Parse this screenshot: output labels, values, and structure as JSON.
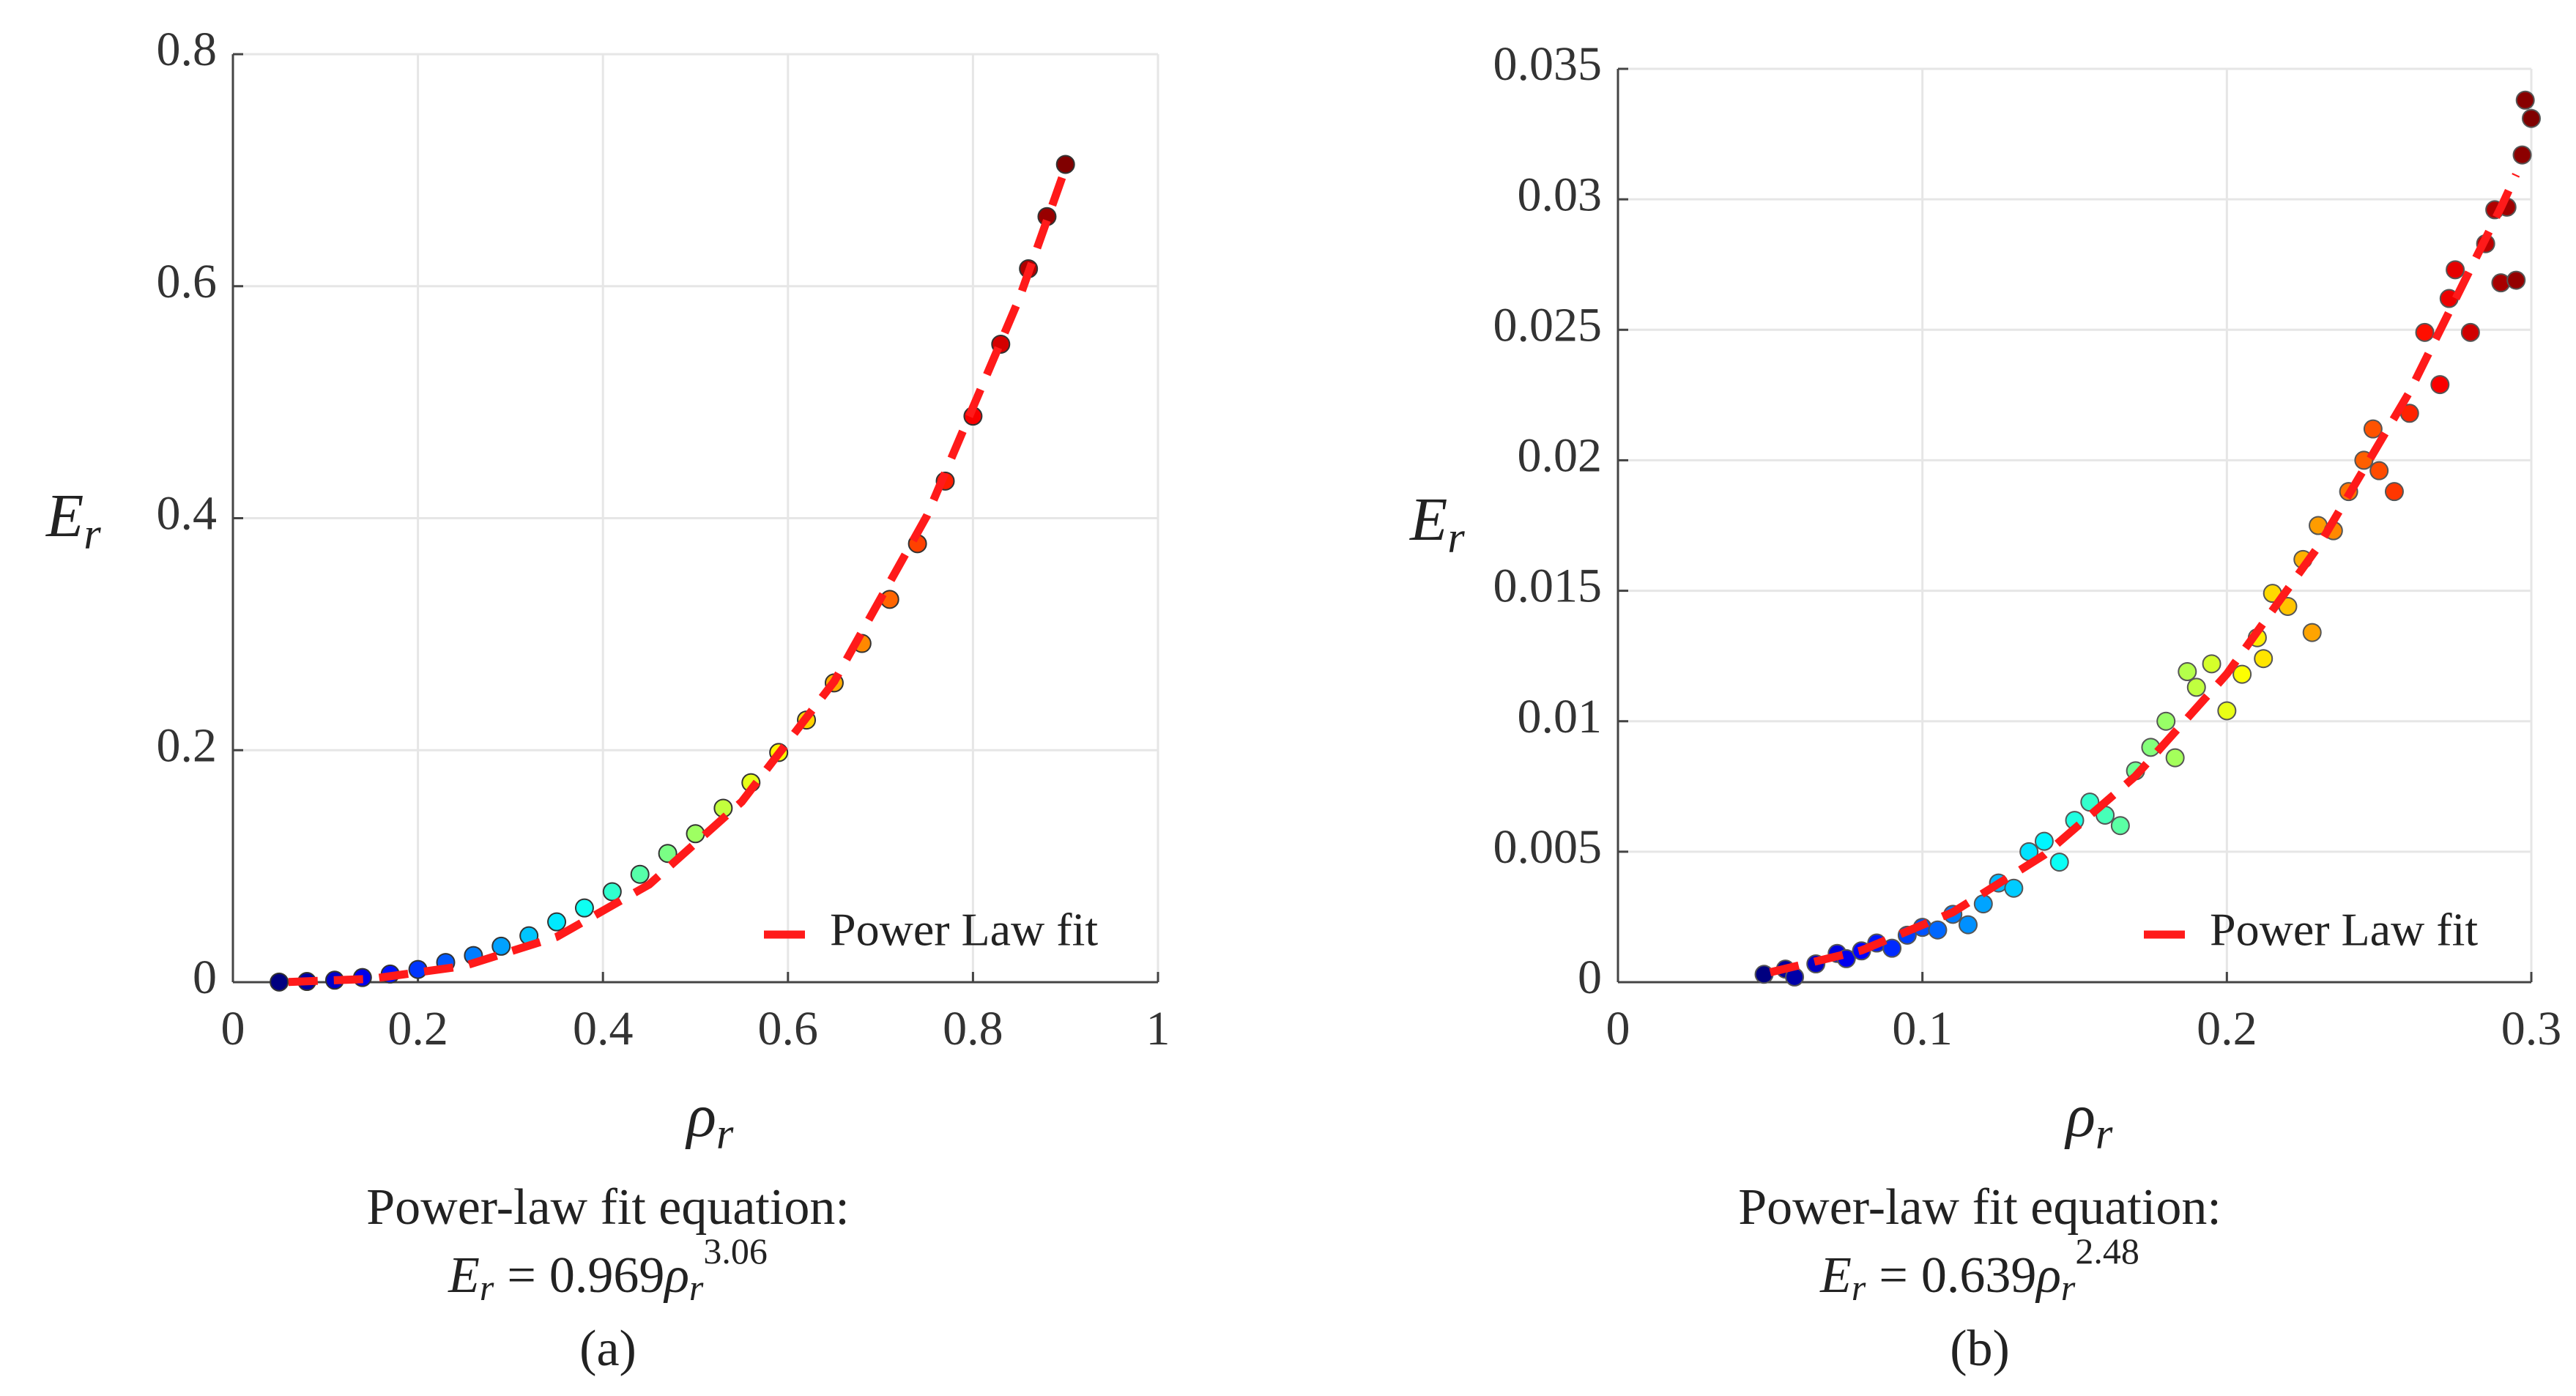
{
  "chart_data": [
    {
      "type": "scatter",
      "panel": "(a)",
      "x_label": {
        "symbol": "ρ",
        "subscript": "r"
      },
      "y_label": {
        "symbol": "E",
        "subscript": "r"
      },
      "fit_equation": {
        "caption": "Power-law fit equation:",
        "lhs": "E",
        "lhs_sub": "r",
        "equals": "=",
        "coef": 0.969,
        "base": "ρ",
        "base_sub": "r",
        "exponent": 3.06
      },
      "xlim": [
        0,
        1
      ],
      "xticks": [
        0,
        0.2,
        0.4,
        0.6,
        0.8,
        1
      ],
      "ylim": [
        0,
        0.8
      ],
      "yticks": [
        0,
        0.2,
        0.4,
        0.6,
        0.8
      ],
      "grid": true,
      "legend": "lower right",
      "series": [
        {
          "type": "scatter",
          "colormap": "jet",
          "edge_color": "#333333",
          "x": [
            0.05,
            0.08,
            0.11,
            0.14,
            0.17,
            0.2,
            0.23,
            0.26,
            0.29,
            0.32,
            0.35,
            0.38,
            0.41,
            0.44,
            0.47,
            0.5,
            0.53,
            0.56,
            0.59,
            0.62,
            0.65,
            0.68,
            0.71,
            0.74,
            0.77,
            0.8,
            0.83,
            0.86,
            0.88,
            0.9
          ],
          "values": [
            0.0001,
            0.0006,
            0.0017,
            0.004,
            0.007,
            0.011,
            0.017,
            0.023,
            0.031,
            0.04,
            0.052,
            0.064,
            0.078,
            0.093,
            0.111,
            0.128,
            0.15,
            0.172,
            0.198,
            0.226,
            0.258,
            0.292,
            0.33,
            0.378,
            0.432,
            0.488,
            0.55,
            0.615,
            0.66,
            0.705
          ]
        },
        {
          "type": "line",
          "name": "Power Law fit",
          "color": "#ff1a1a",
          "dashed": true,
          "x": [
            0.06,
            0.15,
            0.25,
            0.35,
            0.45,
            0.55,
            0.65,
            0.75,
            0.85,
            0.9
          ],
          "values": [
            0.000177,
            0.00292,
            0.01393,
            0.03902,
            0.0842,
            0.1555,
            0.2593,
            0.4018,
            0.5893,
            0.7019
          ]
        }
      ]
    },
    {
      "type": "scatter",
      "panel": "(b)",
      "x_label": {
        "symbol": "ρ",
        "subscript": "r"
      },
      "y_label": {
        "symbol": "E",
        "subscript": "r"
      },
      "fit_equation": {
        "caption": "Power-law fit equation:",
        "lhs": "E",
        "lhs_sub": "r",
        "equals": "=",
        "coef": 0.639,
        "base": "ρ",
        "base_sub": "r",
        "exponent": 2.48
      },
      "xlim": [
        0,
        0.3
      ],
      "xticks": [
        0,
        0.1,
        0.2,
        0.3
      ],
      "ylim": [
        0,
        0.035
      ],
      "yticks": [
        0,
        0.005,
        0.01,
        0.015,
        0.02,
        0.025,
        0.03,
        0.035
      ],
      "grid": true,
      "legend": "lower right",
      "series": [
        {
          "type": "scatter",
          "colormap": "jet",
          "edge_color": "#555555",
          "x": [
            0.048,
            0.055,
            0.058,
            0.065,
            0.072,
            0.075,
            0.08,
            0.085,
            0.09,
            0.095,
            0.1,
            0.105,
            0.11,
            0.115,
            0.12,
            0.125,
            0.13,
            0.135,
            0.14,
            0.145,
            0.15,
            0.155,
            0.16,
            0.165,
            0.17,
            0.175,
            0.18,
            0.183,
            0.187,
            0.19,
            0.195,
            0.2,
            0.205,
            0.21,
            0.212,
            0.215,
            0.22,
            0.225,
            0.228,
            0.23,
            0.235,
            0.24,
            0.245,
            0.248,
            0.25,
            0.255,
            0.26,
            0.265,
            0.27,
            0.273,
            0.275,
            0.28,
            0.285,
            0.288,
            0.29,
            0.292,
            0.295,
            0.297,
            0.298,
            0.3
          ],
          "values": [
            0.0003,
            0.0005,
            0.0002,
            0.0007,
            0.0011,
            0.0009,
            0.0012,
            0.0015,
            0.0013,
            0.0018,
            0.0021,
            0.002,
            0.0026,
            0.0022,
            0.003,
            0.0038,
            0.0036,
            0.005,
            0.0054,
            0.0046,
            0.0062,
            0.0069,
            0.0064,
            0.006,
            0.0081,
            0.009,
            0.01,
            0.0086,
            0.0119,
            0.0113,
            0.0122,
            0.0104,
            0.0118,
            0.0132,
            0.0124,
            0.0149,
            0.0144,
            0.0162,
            0.0134,
            0.0175,
            0.0173,
            0.0188,
            0.02,
            0.0212,
            0.0196,
            0.0188,
            0.0218,
            0.0249,
            0.0229,
            0.0262,
            0.0273,
            0.0249,
            0.0283,
            0.0296,
            0.0268,
            0.0297,
            0.0269,
            0.0317,
            0.0338,
            0.0331
          ]
        },
        {
          "type": "line",
          "name": "Power Law fit",
          "color": "#ff1a1a",
          "dashed": true,
          "x": [
            0.05,
            0.08,
            0.11,
            0.14,
            0.17,
            0.2,
            0.23,
            0.26,
            0.29,
            0.295
          ],
          "values": [
            0.00038,
            0.001217,
            0.002681,
            0.004876,
            0.007898,
            0.01181,
            0.01669,
            0.02262,
            0.02968,
            0.03095
          ]
        }
      ]
    }
  ]
}
